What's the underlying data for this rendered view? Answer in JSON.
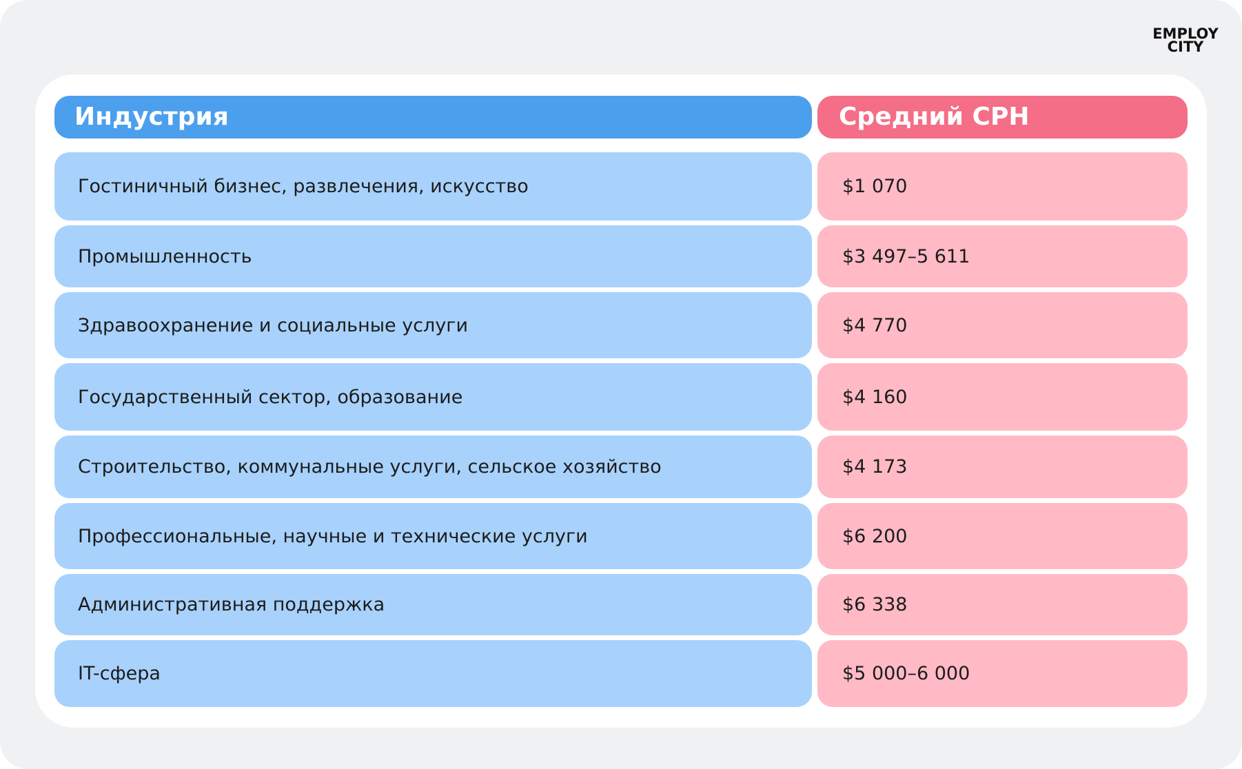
{
  "logo": {
    "line1": "EMPLOY",
    "line2": "CITY"
  },
  "headers": {
    "industry": "Индустрия",
    "cph": "Средний CPH"
  },
  "rows": [
    {
      "industry": "Гостиничный бизнес, развлечения, искусство",
      "cph": "$1 070"
    },
    {
      "industry": "Промышленность",
      "cph": "$3 497–5 611"
    },
    {
      "industry": "Здравоохранение и социальные услуги",
      "cph": "$4 770"
    },
    {
      "industry": "Государственный сектор, образование",
      "cph": "$4 160"
    },
    {
      "industry": "Строительство, коммунальные услуги, сельское хозяйство",
      "cph": "$4 173"
    },
    {
      "industry": "Профессиональные, научные и технические услуги",
      "cph": "$6 200"
    },
    {
      "industry": "Административная поддержка",
      "cph": "$6 338"
    },
    {
      "industry": "IT-сфера",
      "cph": "$5 000–6 000"
    }
  ]
}
